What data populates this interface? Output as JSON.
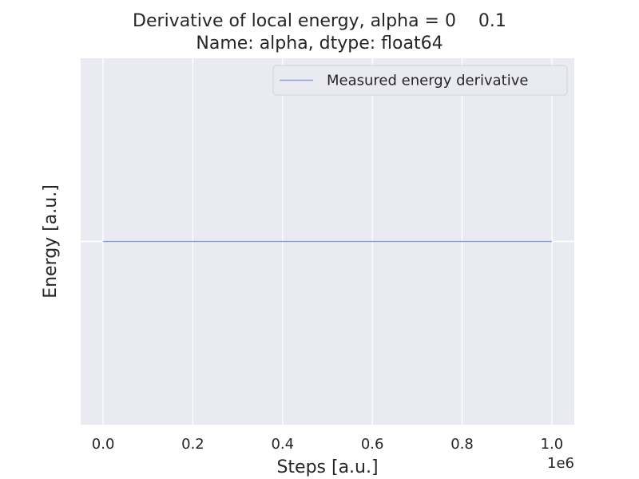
{
  "chart_data": {
    "type": "line",
    "title_line1": "Derivative of local energy, alpha = 0    0.1",
    "title_line2": "Name: alpha, dtype: float64",
    "xlabel": "Steps [a.u.]",
    "ylabel": "Energy [a.u.]",
    "x_offset_label": "1e6",
    "xlim": [
      -0.05,
      1.05
    ],
    "ylim": [
      -0.055,
      0.055
    ],
    "x_ticks": [
      0.0,
      0.2,
      0.4,
      0.6,
      0.8,
      1.0
    ],
    "x_tick_labels": [
      "0.0",
      "0.2",
      "0.4",
      "0.6",
      "0.8",
      "1.0"
    ],
    "y_ticks": [
      0.0
    ],
    "grid": true,
    "legend_position": "top-right",
    "series": [
      {
        "name": "Measured energy derivative",
        "color": "#92a3cb",
        "x": [
          0.0,
          1.0
        ],
        "y": [
          0.0,
          0.0
        ]
      }
    ]
  },
  "colors": {
    "plot_background": "#eaeaf2",
    "grid": "#ffffff"
  }
}
